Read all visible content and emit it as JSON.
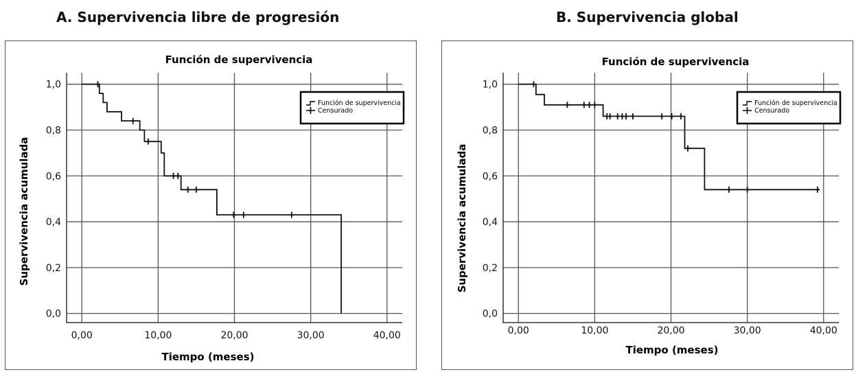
{
  "panels": [
    {
      "panel_title": "A. Supervivencia libre de progresión",
      "plot_title": "Función de supervivencia",
      "xlabel": "Tiempo (meses)",
      "ylabel": "Supervivencia acumulada",
      "legend": {
        "line": "Función de supervivencia",
        "censored": "Censurado"
      }
    },
    {
      "panel_title": "B. Supervivencia global",
      "plot_title": "Función de supervivencia",
      "xlabel": "Tiempo (meses)",
      "ylabel": "Supervivencia acumulada",
      "legend": {
        "line": "Función de supervivencia",
        "censored": "Censurado"
      }
    }
  ],
  "chart_data": [
    {
      "type": "line",
      "title": "Función de supervivencia",
      "xlabel": "Tiempo (meses)",
      "ylabel": "Supervivencia acumulada",
      "xlim": [
        -2,
        42
      ],
      "ylim": [
        -0.04,
        1.05
      ],
      "xticks": [
        "0,00",
        "10,00",
        "20,00",
        "30,00",
        "40,00"
      ],
      "yticks": [
        "0,0",
        "0,2",
        "0,4",
        "0,6",
        "0,8",
        "1,0"
      ],
      "grid": true,
      "legend_position": "top-right",
      "series": [
        {
          "name": "Función de supervivencia",
          "step": [
            [
              0,
              1.0
            ],
            [
              2.3,
              1.0
            ],
            [
              2.3,
              0.96
            ],
            [
              2.8,
              0.96
            ],
            [
              2.8,
              0.92
            ],
            [
              3.3,
              0.92
            ],
            [
              3.3,
              0.88
            ],
            [
              5.2,
              0.88
            ],
            [
              5.2,
              0.84
            ],
            [
              7.6,
              0.84
            ],
            [
              7.6,
              0.8
            ],
            [
              8.2,
              0.8
            ],
            [
              8.2,
              0.75
            ],
            [
              10.4,
              0.75
            ],
            [
              10.4,
              0.7
            ],
            [
              10.8,
              0.7
            ],
            [
              10.8,
              0.6
            ],
            [
              13.0,
              0.6
            ],
            [
              13.0,
              0.54
            ],
            [
              17.7,
              0.54
            ],
            [
              17.7,
              0.43
            ],
            [
              34.0,
              0.43
            ],
            [
              34.0,
              0.0
            ]
          ]
        },
        {
          "name": "Censurado",
          "points": [
            [
              2.1,
              1.0
            ],
            [
              6.7,
              0.84
            ],
            [
              8.7,
              0.75
            ],
            [
              12.0,
              0.6
            ],
            [
              12.6,
              0.6
            ],
            [
              13.9,
              0.54
            ],
            [
              15.0,
              0.54
            ],
            [
              19.9,
              0.43
            ],
            [
              21.2,
              0.43
            ],
            [
              27.5,
              0.43
            ]
          ]
        }
      ]
    },
    {
      "type": "line",
      "title": "Función de supervivencia",
      "xlabel": "Tiempo (meses)",
      "ylabel": "Supervivencia acumulada",
      "xlim": [
        -2,
        42
      ],
      "ylim": [
        -0.04,
        1.05
      ],
      "xticks": [
        "0,00",
        "10,00",
        "20,00",
        "30,00",
        "40,00"
      ],
      "yticks": [
        "0,0",
        "0,2",
        "0,4",
        "0,6",
        "0,8",
        "1,0"
      ],
      "grid": true,
      "legend_position": "top-right",
      "series": [
        {
          "name": "Función de supervivencia",
          "step": [
            [
              0,
              1.0
            ],
            [
              2.3,
              1.0
            ],
            [
              2.3,
              0.955
            ],
            [
              3.4,
              0.955
            ],
            [
              3.4,
              0.91
            ],
            [
              11.1,
              0.91
            ],
            [
              11.1,
              0.86
            ],
            [
              21.8,
              0.86
            ],
            [
              21.8,
              0.72
            ],
            [
              24.4,
              0.72
            ],
            [
              24.4,
              0.54
            ],
            [
              39.5,
              0.54
            ]
          ]
        },
        {
          "name": "Censurado",
          "points": [
            [
              2.0,
              1.0
            ],
            [
              6.4,
              0.91
            ],
            [
              8.6,
              0.91
            ],
            [
              9.3,
              0.91
            ],
            [
              10.0,
              0.91
            ],
            [
              11.6,
              0.86
            ],
            [
              12.0,
              0.86
            ],
            [
              13.0,
              0.86
            ],
            [
              13.6,
              0.86
            ],
            [
              14.1,
              0.86
            ],
            [
              15.0,
              0.86
            ],
            [
              18.8,
              0.86
            ],
            [
              20.1,
              0.86
            ],
            [
              21.3,
              0.86
            ],
            [
              22.2,
              0.72
            ],
            [
              27.6,
              0.54
            ],
            [
              30.0,
              0.54
            ],
            [
              39.2,
              0.54
            ]
          ]
        }
      ]
    }
  ]
}
